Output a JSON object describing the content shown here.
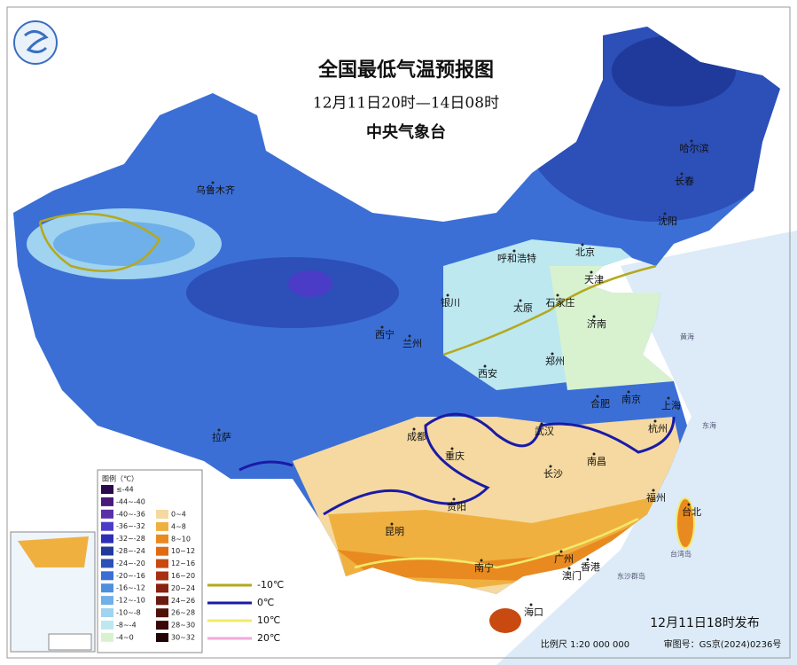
{
  "header": {
    "title": "全国最低气温预报图",
    "period": "12月11日20时—14日08时",
    "agency": "中央气象台"
  },
  "cities": [
    "乌鲁木齐",
    "哈尔滨",
    "长春",
    "沈阳",
    "呼和浩特",
    "北京",
    "天津",
    "银川",
    "太原",
    "石家庄",
    "济南",
    "西宁",
    "兰州",
    "郑州",
    "西安",
    "合肥",
    "南京",
    "上海",
    "拉萨",
    "成都",
    "武汉",
    "杭州",
    "重庆",
    "长沙",
    "南昌",
    "福州",
    "贵阳",
    "昆明",
    "台北",
    "广州",
    "香港",
    "南宁",
    "澳门",
    "海口"
  ],
  "sea_labels": [
    "黄海",
    "东海",
    "台湾岛",
    "东沙群岛"
  ],
  "legend": {
    "title": "图例（℃）",
    "items": [
      {
        "label": "≤-44",
        "color": "#2a0a4a"
      },
      {
        "label": "-44~-40",
        "color": "#4a1a7a"
      },
      {
        "label": "-40~-36",
        "color": "#5b2fa8"
      },
      {
        "label": "-36~-32",
        "color": "#4b3cc8"
      },
      {
        "label": "-32~-28",
        "color": "#2f2fb5"
      },
      {
        "label": "-28~-24",
        "color": "#1f3a9a"
      },
      {
        "label": "-24~-20",
        "color": "#2c4fb8"
      },
      {
        "label": "-20~-16",
        "color": "#3b6fd5"
      },
      {
        "label": "-16~-12",
        "color": "#4f8fe0"
      },
      {
        "label": "-12~-10",
        "color": "#6fb0ea"
      },
      {
        "label": "-10~-8",
        "color": "#9fd3f0"
      },
      {
        "label": "-8~-4",
        "color": "#bde8f0"
      },
      {
        "label": "-4~0",
        "color": "#d8f2d0"
      },
      {
        "label": "0~4",
        "color": "#f5d9a0"
      },
      {
        "label": "4~8",
        "color": "#f0b040"
      },
      {
        "label": "8~10",
        "color": "#e88a20"
      },
      {
        "label": "10~12",
        "color": "#e06a10"
      },
      {
        "label": "12~16",
        "color": "#c84a10"
      },
      {
        "label": "16~20",
        "color": "#a83010"
      },
      {
        "label": "20~24",
        "color": "#8a2010"
      },
      {
        "label": "24~26",
        "color": "#6a1a10"
      },
      {
        "label": "26~28",
        "color": "#501008"
      },
      {
        "label": "28~30",
        "color": "#3a0804"
      },
      {
        "label": "30~32",
        "color": "#200404"
      }
    ]
  },
  "isotherms": [
    {
      "label": "-10℃",
      "color": "#b5a81c"
    },
    {
      "label": "0℃",
      "color": "#1a1aa8"
    },
    {
      "label": "10℃",
      "color": "#f2ea6a"
    },
    {
      "label": "20℃",
      "color": "#f0a8d8"
    }
  ],
  "footer": {
    "issued": "12月11日18时发布",
    "scale": "比例尺 1:20 000 000",
    "approval": "审图号：GS京(2024)0236号"
  }
}
